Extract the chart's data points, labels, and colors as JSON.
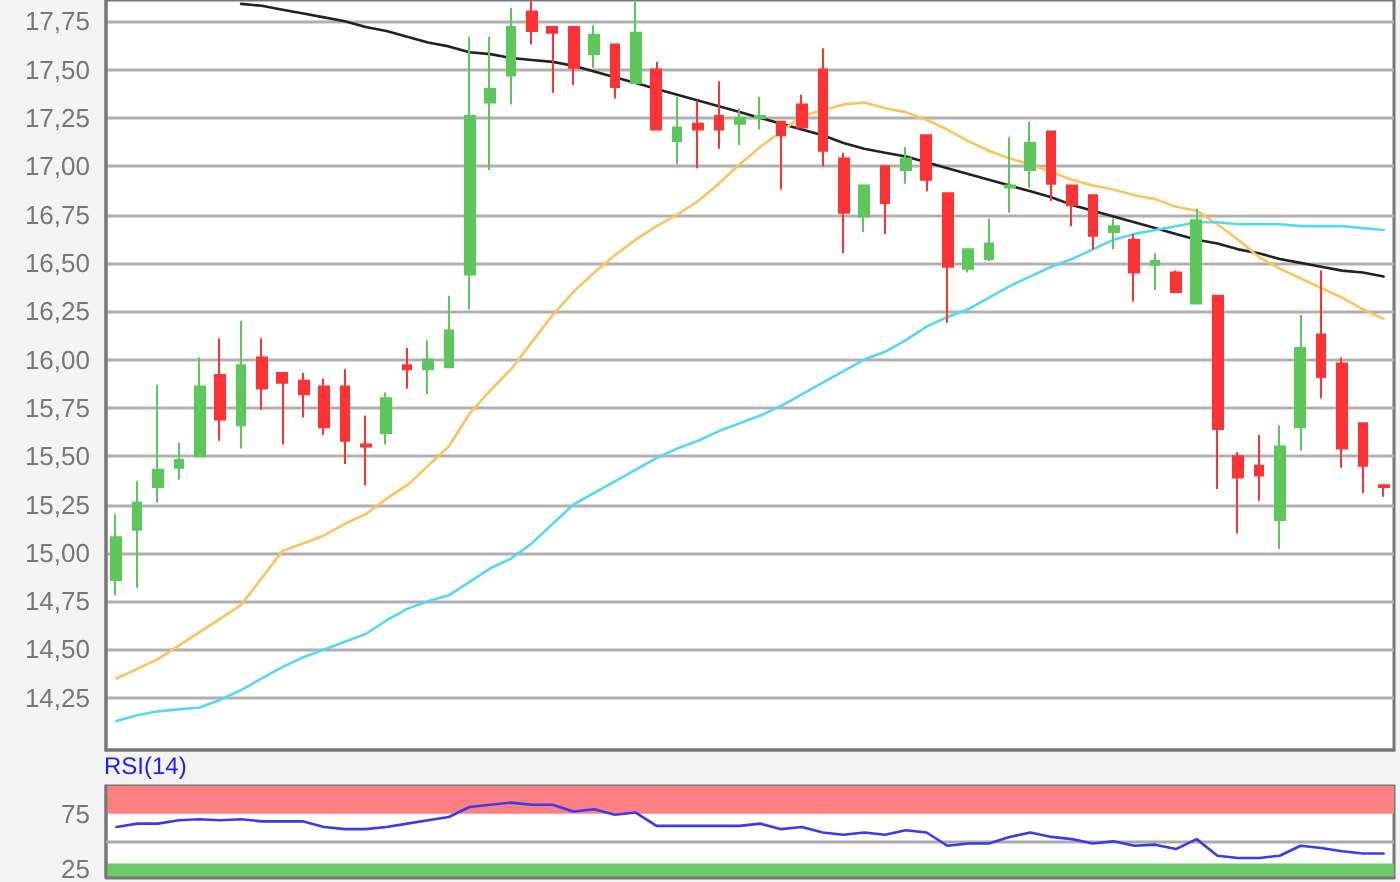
{
  "chart_data": [
    {
      "type": "candlestick",
      "categories": [
        null,
        null,
        null,
        null,
        null,
        null,
        null,
        null,
        null,
        null,
        null,
        null,
        null,
        null,
        null,
        null,
        null,
        null,
        null,
        null,
        null,
        null,
        null,
        null,
        null,
        null,
        null,
        null,
        null,
        null,
        null,
        null,
        null,
        null,
        null,
        null,
        null,
        null,
        null,
        null,
        null,
        null,
        null,
        null,
        null,
        null,
        null,
        null,
        null,
        null,
        null,
        null,
        null,
        null,
        null,
        null,
        null,
        null,
        null,
        null,
        null,
        null
      ],
      "ohlc": [
        [
          14.86,
          15.2,
          14.78,
          15.08
        ],
        [
          15.12,
          15.37,
          14.82,
          15.26
        ],
        [
          15.34,
          15.87,
          15.26,
          15.43
        ],
        [
          15.44,
          15.57,
          15.38,
          15.48
        ],
        [
          15.5,
          16.01,
          15.5,
          15.86
        ],
        [
          15.92,
          16.11,
          15.58,
          15.69
        ],
        [
          15.66,
          16.2,
          15.54,
          15.97
        ],
        [
          16.01,
          16.11,
          15.74,
          15.85
        ],
        [
          15.93,
          15.93,
          15.56,
          15.88
        ],
        [
          15.89,
          15.93,
          15.7,
          15.82
        ],
        [
          15.86,
          15.9,
          15.61,
          15.65
        ],
        [
          15.86,
          15.95,
          15.46,
          15.58
        ],
        [
          15.56,
          15.71,
          15.35,
          15.55
        ],
        [
          15.62,
          15.83,
          15.56,
          15.8
        ],
        [
          15.97,
          16.06,
          15.85,
          15.95
        ],
        [
          15.95,
          16.1,
          15.82,
          16.0
        ],
        [
          15.96,
          16.33,
          15.96,
          16.15
        ],
        [
          16.44,
          17.67,
          16.26,
          17.26
        ],
        [
          17.33,
          17.67,
          16.98,
          17.4
        ],
        [
          17.47,
          17.82,
          17.32,
          17.72
        ],
        [
          17.8,
          17.86,
          17.63,
          17.7
        ],
        [
          17.72,
          17.72,
          17.38,
          17.69
        ],
        [
          17.72,
          17.72,
          17.42,
          17.51
        ],
        [
          17.58,
          17.73,
          17.51,
          17.68
        ],
        [
          17.63,
          17.63,
          17.35,
          17.41
        ],
        [
          17.43,
          17.85,
          17.43,
          17.69
        ],
        [
          17.5,
          17.54,
          17.19,
          17.19
        ],
        [
          17.13,
          17.36,
          17.01,
          17.2
        ],
        [
          17.22,
          17.34,
          16.99,
          17.19
        ],
        [
          17.26,
          17.44,
          17.09,
          17.19
        ],
        [
          17.22,
          17.3,
          17.11,
          17.25
        ],
        [
          17.25,
          17.36,
          17.19,
          17.26
        ],
        [
          17.23,
          17.23,
          16.88,
          17.16
        ],
        [
          17.32,
          17.37,
          17.2,
          17.2
        ],
        [
          17.5,
          17.61,
          17.0,
          17.08
        ],
        [
          17.04,
          17.07,
          16.55,
          16.76
        ],
        [
          16.74,
          16.9,
          16.66,
          16.9
        ],
        [
          17.0,
          17.0,
          16.65,
          16.81
        ],
        [
          16.98,
          17.1,
          16.91,
          17.04
        ],
        [
          17.16,
          17.16,
          16.87,
          16.93
        ],
        [
          16.86,
          16.86,
          16.19,
          16.48
        ],
        [
          16.47,
          16.57,
          16.45,
          16.57
        ],
        [
          16.52,
          16.73,
          16.51,
          16.6
        ],
        [
          16.89,
          17.15,
          16.76,
          16.9
        ],
        [
          16.98,
          17.23,
          16.89,
          17.12
        ],
        [
          17.18,
          17.18,
          16.82,
          16.91
        ],
        [
          16.9,
          16.9,
          16.69,
          16.8
        ],
        [
          16.85,
          16.85,
          16.57,
          16.64
        ],
        [
          16.66,
          16.73,
          16.57,
          16.69
        ],
        [
          16.62,
          16.65,
          16.3,
          16.45
        ],
        [
          16.49,
          16.55,
          16.36,
          16.51
        ],
        [
          16.45,
          16.46,
          16.35,
          16.35
        ],
        [
          16.29,
          16.78,
          16.29,
          16.72
        ],
        [
          16.33,
          16.33,
          15.33,
          15.64
        ],
        [
          15.5,
          15.52,
          15.1,
          15.39
        ],
        [
          15.45,
          15.61,
          15.27,
          15.4
        ],
        [
          15.17,
          15.66,
          15.02,
          15.55
        ],
        [
          15.65,
          16.23,
          15.53,
          16.06
        ],
        [
          16.13,
          16.46,
          15.8,
          15.91
        ],
        [
          15.98,
          16.01,
          15.44,
          15.54
        ],
        [
          15.67,
          15.67,
          15.31,
          15.45
        ],
        [
          15.35,
          15.35,
          15.29,
          15.34
        ]
      ],
      "colors": [
        "#5cc85c",
        "#5cc85c",
        "#5cc85c",
        "#5cc85c",
        "#5cc85c",
        "#ff3333",
        "#5cc85c",
        "#ff3333",
        "#ff3333",
        "#ff3333",
        "#ff3333",
        "#ff3333",
        "#ff3333",
        "#5cc85c",
        "#ff3333",
        "#5cc85c",
        "#5cc85c",
        "#5cc85c",
        "#5cc85c",
        "#5cc85c",
        "#ff3333",
        "#ff3333",
        "#ff3333",
        "#5cc85c",
        "#ff3333",
        "#5cc85c",
        "#ff3333",
        "#5cc85c",
        "#ff3333",
        "#ff3333",
        "#5cc85c",
        "#5cc85c",
        "#ff3333",
        "#ff3333",
        "#ff3333",
        "#ff3333",
        "#5cc85c",
        "#ff3333",
        "#5cc85c",
        "#ff3333",
        "#ff3333",
        "#5cc85c",
        "#5cc85c",
        "#5cc85c",
        "#5cc85c",
        "#ff3333",
        "#ff3333",
        "#ff3333",
        "#5cc85c",
        "#ff3333",
        "#5cc85c",
        "#ff3333",
        "#5cc85c",
        "#ff3333",
        "#ff3333",
        "#ff3333",
        "#5cc85c",
        "#5cc85c",
        "#ff3333",
        "#ff3333",
        "#ff3333",
        "#ff3333"
      ],
      "series": [
        {
          "type": "line",
          "color": "#222222",
          "values": [
            null,
            null,
            null,
            null,
            null,
            null,
            17.84,
            17.83,
            17.81,
            17.79,
            17.77,
            17.75,
            17.72,
            17.7,
            17.67,
            17.64,
            17.62,
            17.59,
            17.58,
            17.56,
            17.55,
            17.54,
            17.52,
            17.49,
            17.46,
            17.43,
            17.4,
            17.37,
            17.34,
            17.31,
            17.28,
            17.25,
            17.22,
            17.19,
            17.16,
            17.12,
            17.09,
            17.07,
            17.05,
            17.02,
            16.99,
            16.96,
            16.93,
            16.9,
            16.87,
            16.84,
            16.8,
            16.77,
            16.74,
            16.71,
            16.68,
            16.65,
            16.62,
            16.6,
            16.57,
            16.55,
            16.52,
            16.5,
            16.48,
            16.46,
            16.45,
            16.43
          ]
        },
        {
          "type": "line",
          "color": "#fbc55a",
          "values": [
            14.35,
            14.4,
            14.45,
            14.52,
            14.59,
            14.66,
            14.73,
            14.87,
            15.01,
            15.05,
            15.09,
            15.15,
            15.2,
            15.28,
            15.35,
            15.45,
            15.55,
            15.72,
            15.84,
            15.95,
            16.09,
            16.23,
            16.35,
            16.45,
            16.54,
            16.62,
            16.69,
            16.75,
            16.82,
            16.91,
            17.01,
            17.1,
            17.18,
            17.26,
            17.29,
            17.32,
            17.33,
            17.3,
            17.28,
            17.24,
            17.19,
            17.13,
            17.08,
            17.04,
            17.01,
            16.97,
            16.93,
            16.9,
            16.88,
            16.85,
            16.83,
            16.79,
            16.77,
            16.7,
            16.62,
            16.53,
            16.47,
            16.42,
            16.37,
            16.32,
            16.26,
            16.21
          ]
        },
        {
          "type": "line",
          "color": "#55d8f8",
          "values": [
            14.13,
            14.16,
            14.18,
            14.19,
            14.2,
            14.24,
            14.29,
            14.35,
            14.41,
            14.46,
            14.5,
            14.54,
            14.58,
            14.65,
            14.71,
            14.75,
            14.78,
            14.85,
            14.92,
            14.97,
            15.05,
            15.15,
            15.25,
            15.31,
            15.37,
            15.43,
            15.49,
            15.54,
            15.58,
            15.63,
            15.67,
            15.71,
            15.76,
            15.82,
            15.88,
            15.94,
            16.0,
            16.04,
            16.1,
            16.17,
            16.22,
            16.26,
            16.32,
            16.38,
            16.43,
            16.48,
            16.52,
            16.57,
            16.62,
            16.65,
            16.67,
            16.69,
            16.71,
            16.71,
            16.7,
            16.7,
            16.7,
            16.69,
            16.69,
            16.69,
            16.68,
            16.67
          ]
        }
      ],
      "ylim": [
        13.98,
        17.86
      ],
      "yticks": [
        {
          "value": 14.25,
          "label": "14,25"
        },
        {
          "value": 14.5,
          "label": "14,50"
        },
        {
          "value": 14.75,
          "label": "14,75"
        },
        {
          "value": 15,
          "label": "15,00"
        },
        {
          "value": 15.25,
          "label": "15,25"
        },
        {
          "value": 15.5,
          "label": "15,50"
        },
        {
          "value": 15.75,
          "label": "15,75"
        },
        {
          "value": 16,
          "label": "16,00"
        },
        {
          "value": 16.25,
          "label": "16,25"
        },
        {
          "value": 16.5,
          "label": "16,50"
        },
        {
          "value": 16.75,
          "label": "16,75"
        },
        {
          "value": 17,
          "label": "17,00"
        },
        {
          "value": 17.25,
          "label": "17,25"
        },
        {
          "value": 17.5,
          "label": "17,50"
        },
        {
          "value": 17.75,
          "label": "17,75"
        }
      ],
      "grid": "y",
      "tick_labels": "y",
      "marker": "none"
    },
    {
      "type": "line",
      "title": "RSI(14)",
      "categories": [
        null,
        null,
        null,
        null,
        null,
        null,
        null,
        null,
        null,
        null,
        null,
        null,
        null,
        null,
        null,
        null,
        null,
        null,
        null,
        null,
        null,
        null,
        null,
        null,
        null,
        null,
        null,
        null,
        null,
        null,
        null,
        null,
        null,
        null,
        null,
        null,
        null,
        null,
        null,
        null,
        null,
        null,
        null,
        null,
        null,
        null,
        null,
        null,
        null,
        null,
        null,
        null,
        null,
        null,
        null,
        null,
        null,
        null,
        null,
        null,
        null,
        null
      ],
      "series": [
        {
          "color": "#3a3af0",
          "values": [
            63,
            66,
            66,
            69,
            70,
            69,
            70,
            68,
            68,
            68,
            63,
            61,
            61,
            63,
            66,
            69,
            72,
            81,
            83,
            85,
            83,
            83,
            77,
            79,
            74,
            76,
            64,
            64,
            64,
            64,
            64,
            66,
            61,
            63,
            58,
            56,
            58,
            56,
            60,
            58,
            46,
            48,
            48,
            54,
            58,
            54,
            52,
            48,
            50,
            46,
            47,
            43,
            52,
            37,
            35,
            35,
            37,
            46,
            44,
            41,
            39,
            39
          ]
        }
      ],
      "ylim": [
        18,
        100
      ],
      "yticks": [
        25,
        75
      ],
      "bands": [
        {
          "axis": "y",
          "from": 75,
          "to": 100,
          "color": "#ff8080"
        },
        {
          "axis": "y",
          "from": 18,
          "to": 30,
          "color": "#6ccc6c"
        }
      ],
      "ref_lines": [
        {
          "axis": "y",
          "value": 50,
          "color": "#aaaaaa"
        }
      ],
      "tick_labels": "y",
      "marker": "none"
    }
  ]
}
